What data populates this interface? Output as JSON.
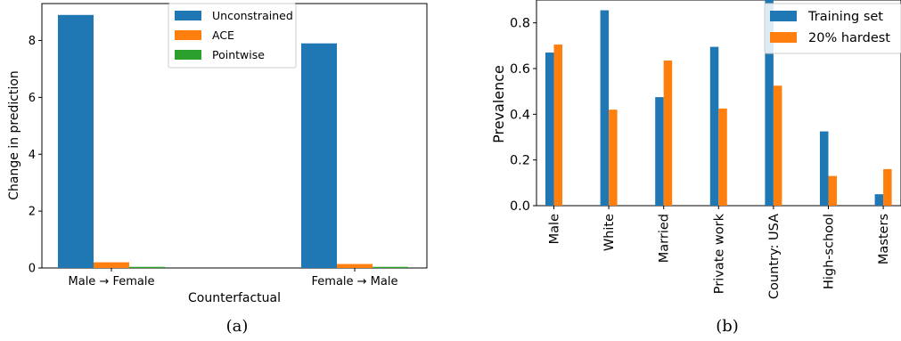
{
  "chart_data": [
    {
      "type": "bar",
      "panel_caption": "(a)",
      "categories": [
        "Male → Female",
        "Female → Male"
      ],
      "series": [
        {
          "name": "Unconstrained",
          "values": [
            8.9,
            7.9
          ]
        },
        {
          "name": "ACE",
          "values": [
            0.2,
            0.14
          ]
        },
        {
          "name": "Pointwise",
          "values": [
            0.04,
            0.04
          ]
        }
      ],
      "xlabel": "Counterfactual",
      "ylabel": "Change in prediction",
      "ylim": [
        0,
        9.3
      ],
      "yticks": [
        0,
        2,
        4,
        6,
        8
      ],
      "legend_position": "top-right",
      "grid": false
    },
    {
      "type": "bar",
      "panel_caption": "(b)",
      "categories": [
        "Male",
        "White",
        "Married",
        "Private work",
        "Country: USA",
        "High-school",
        "Masters"
      ],
      "series": [
        {
          "name": "Training set",
          "values": [
            0.67,
            0.855,
            0.475,
            0.695,
            0.9,
            0.325,
            0.05
          ]
        },
        {
          "name": "20% hardest",
          "values": [
            0.705,
            0.42,
            0.635,
            0.425,
            0.525,
            0.13,
            0.16
          ]
        }
      ],
      "xlabel": "",
      "ylabel": "Prevalence",
      "ylim": [
        0,
        0.9
      ],
      "yticks": [
        "0.0",
        "0.2",
        "0.4",
        "0.6",
        "0.8"
      ],
      "legend_position": "top-right",
      "grid": false
    }
  ],
  "colors": {
    "blue": "#1f77b4",
    "orange": "#ff7f0e",
    "green": "#2ca02c"
  }
}
